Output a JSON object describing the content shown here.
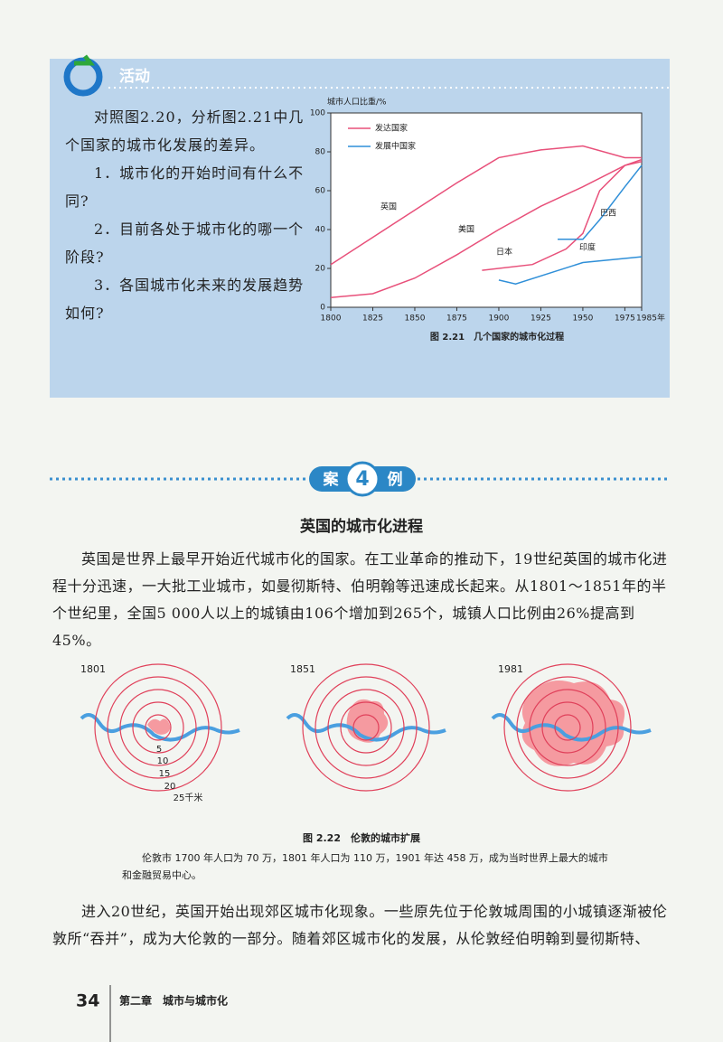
{
  "activity": {
    "title": "活动",
    "items": [
      "对照图2.20，分析图2.21中几个国家的城市化发展的差异。",
      "1．城市化的开始时间有什么不同?",
      "2．目前各处于城市化的哪一个阶段?",
      "3．各国城市化未来的发展趋势如何?"
    ]
  },
  "chart_data": {
    "type": "line",
    "y_label": "城市人口比重/%",
    "caption": "图 2.21　几个国家的城市化过程",
    "legend": [
      {
        "name": "发达国家",
        "color": "#e8507a"
      },
      {
        "name": "发展中国家",
        "color": "#2f8fd8"
      }
    ],
    "xlim": [
      1800,
      1985
    ],
    "xticks": [
      1800,
      1825,
      1850,
      1875,
      1900,
      1925,
      1950,
      1975,
      {
        "value": 1985,
        "label": "1985年"
      }
    ],
    "ylim": [
      0,
      100
    ],
    "yticks": [
      0,
      20,
      40,
      60,
      80,
      100
    ],
    "series": [
      {
        "name": "英国",
        "color": "#e8507a",
        "x": [
          1800,
          1825,
          1850,
          1875,
          1900,
          1925,
          1950,
          1975,
          1985
        ],
        "values": [
          22,
          36,
          50,
          64,
          77,
          81,
          83,
          77,
          77
        ]
      },
      {
        "name": "美国",
        "color": "#e8507a",
        "x": [
          1800,
          1825,
          1850,
          1875,
          1900,
          1925,
          1950,
          1975,
          1985
        ],
        "values": [
          5,
          7,
          15,
          27,
          40,
          52,
          62,
          73,
          75
        ]
      },
      {
        "name": "日本",
        "color": "#e8507a",
        "x": [
          1890,
          1920,
          1940,
          1950,
          1960,
          1975,
          1985
        ],
        "values": [
          19,
          22,
          30,
          38,
          60,
          73,
          76
        ]
      },
      {
        "name": "巴西",
        "color": "#2f8fd8",
        "x": [
          1935,
          1950,
          1960,
          1975,
          1985
        ],
        "values": [
          35,
          35,
          45,
          62,
          73
        ]
      },
      {
        "name": "印度",
        "color": "#2f8fd8",
        "x": [
          1900,
          1910,
          1950,
          1985
        ],
        "values": [
          14,
          12,
          23,
          26
        ]
      }
    ]
  },
  "case": {
    "badge": [
      "案",
      "4",
      "例"
    ],
    "title": "英国的城市化进程",
    "paragraph_1": "英国是世界上最早开始近代城市化的国家。在工业革命的推动下，19世纪英国的城市化进程十分迅速，一大批工业城市，如曼彻斯特、伯明翰等迅速成长起来。从1801～1851年的半个世纪里，全国5 000人以上的城镇由106个增加到265个，城镇人口比例由26%提高到45%。",
    "figure": {
      "years": [
        "1801",
        "1851",
        "1981"
      ],
      "ring_labels": [
        "5",
        "10",
        "15",
        "20",
        "25千米"
      ],
      "caption": "图 2.22　伦敦的城市扩展",
      "note": "伦敦市 1700 年人口为 70 万，1801 年人口为 110 万，1901 年达 458 万，成为当时世界上最大的城市和金融贸易中心。"
    },
    "paragraph_2": "进入20世纪，英国开始出现郊区城市化现象。一些原先位于伦敦城周围的小城镇逐渐被伦敦所“吞并”，成为大伦敦的一部分。随着郊区城市化的发展，从伦敦经伯明翰到曼彻斯特、"
  },
  "footer": {
    "page": "34",
    "chapter": "第二章　城市与城市化"
  }
}
